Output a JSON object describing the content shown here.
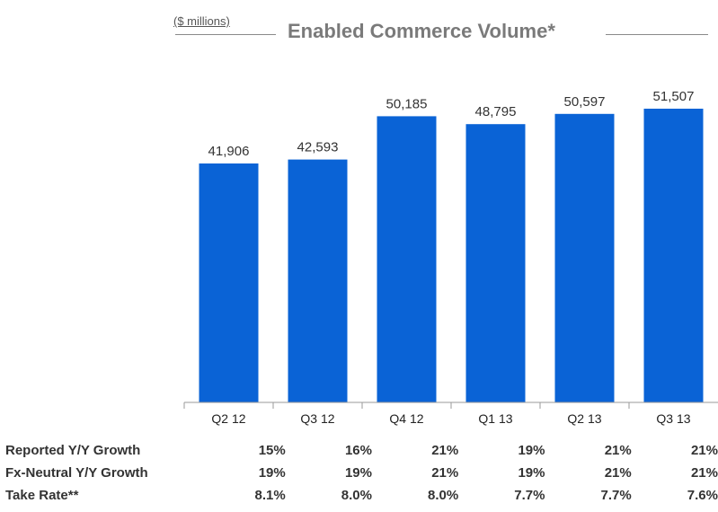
{
  "header": {
    "units": "($ millions)",
    "title": "Enabled Commerce Volume*"
  },
  "chart_data": {
    "type": "bar",
    "title": "Enabled Commerce Volume*",
    "units": "($ millions)",
    "categories": [
      "Q2 12",
      "Q3 12",
      "Q4 12",
      "Q1 13",
      "Q2 13",
      "Q3 13"
    ],
    "values": [
      41906,
      42593,
      50185,
      48795,
      50597,
      51507
    ],
    "value_labels": [
      "41,906",
      "42,593",
      "50,185",
      "48,795",
      "50,597",
      "51,507"
    ],
    "xlabel": "",
    "ylabel": "",
    "ylim": [
      0,
      55000
    ],
    "grid": false,
    "legend": "none",
    "bar_color": "#0a63d6"
  },
  "metrics": {
    "rows": [
      {
        "label": "Reported Y/Y Growth",
        "values": [
          "15%",
          "16%",
          "21%",
          "19%",
          "21%",
          "21%"
        ]
      },
      {
        "label": "Fx-Neutral Y/Y Growth",
        "values": [
          "19%",
          "19%",
          "21%",
          "19%",
          "21%",
          "21%"
        ]
      },
      {
        "label": "Take Rate**",
        "values": [
          "8.1%",
          "8.0%",
          "8.0%",
          "7.7%",
          "7.7%",
          "7.6%"
        ]
      }
    ]
  }
}
